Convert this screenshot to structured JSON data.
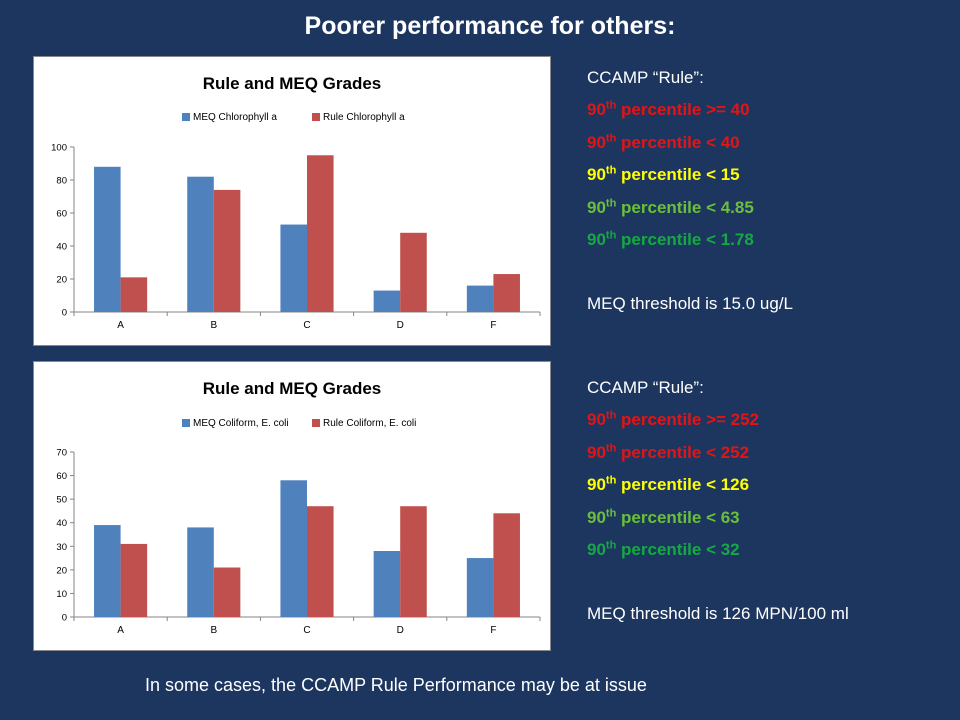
{
  "slide": {
    "title": "Poorer performance for others:",
    "footer": "In some cases, the CCAMP Rule Performance may be at issue"
  },
  "colors": {
    "background": "#1c3660",
    "series_meq": "#4f81bd",
    "series_rule": "#c0504d",
    "rule_red": "#e41414",
    "rule_yellow": "#ffff00",
    "rule_lightgreen": "#6bbf3a",
    "rule_green": "#15a843"
  },
  "panel1": {
    "heading": " CCAMP “Rule”:",
    "lines": [
      {
        "prefix": "90",
        "sup": "th",
        "text": " percentile >= 40",
        "color": "red"
      },
      {
        "prefix": "90",
        "sup": "th",
        "text": " percentile < 40",
        "color": "red"
      },
      {
        "prefix": "90",
        "sup": "th",
        "text": " percentile < 15",
        "color": "yellow"
      },
      {
        "prefix": "90",
        "sup": "th",
        "text": " percentile < 4.85",
        "color": "lightgreen"
      },
      {
        "prefix": "90",
        "sup": "th",
        "text": " percentile < 1.78",
        "color": "green"
      }
    ],
    "threshold": "MEQ threshold is 15.0 ug/L"
  },
  "panel2": {
    "heading": "CCAMP “Rule”:",
    "lines": [
      {
        "prefix": "90",
        "sup": "th",
        "text": " percentile >= 252",
        "color": "red"
      },
      {
        "prefix": "90",
        "sup": "th",
        "text": " percentile < 252",
        "color": "red"
      },
      {
        "prefix": "90",
        "sup": "th",
        "text": " percentile < 126",
        "color": "yellow"
      },
      {
        "prefix": "90",
        "sup": "th",
        "text": " percentile < 63",
        "color": "lightgreen"
      },
      {
        "prefix": "90",
        "sup": "th",
        "text": " percentile < 32",
        "color": "green"
      }
    ],
    "threshold": "MEQ threshold is 126 MPN/100 ml"
  },
  "chart_data": [
    {
      "type": "bar",
      "title": "Rule and MEQ Grades",
      "categories": [
        "A",
        "B",
        "C",
        "D",
        "F"
      ],
      "series": [
        {
          "name": "MEQ Chlorophyll a",
          "values": [
            88,
            82,
            53,
            13,
            16
          ]
        },
        {
          "name": "Rule Chlorophyll a",
          "values": [
            21,
            74,
            95,
            48,
            23
          ]
        }
      ],
      "ylim": [
        0,
        100
      ],
      "yticks": [
        0,
        20,
        40,
        60,
        80,
        100
      ],
      "legend": "top",
      "grid": false
    },
    {
      "type": "bar",
      "title": "Rule and MEQ Grades",
      "categories": [
        "A",
        "B",
        "C",
        "D",
        "F"
      ],
      "series": [
        {
          "name": "MEQ Coliform, E. coli",
          "values": [
            39,
            38,
            58,
            28,
            25
          ]
        },
        {
          "name": "Rule Coliform, E. coli",
          "values": [
            31,
            21,
            47,
            47,
            44
          ]
        }
      ],
      "ylim": [
        0,
        70
      ],
      "yticks": [
        0,
        10,
        20,
        30,
        40,
        50,
        60,
        70
      ],
      "legend": "top",
      "grid": false
    }
  ]
}
